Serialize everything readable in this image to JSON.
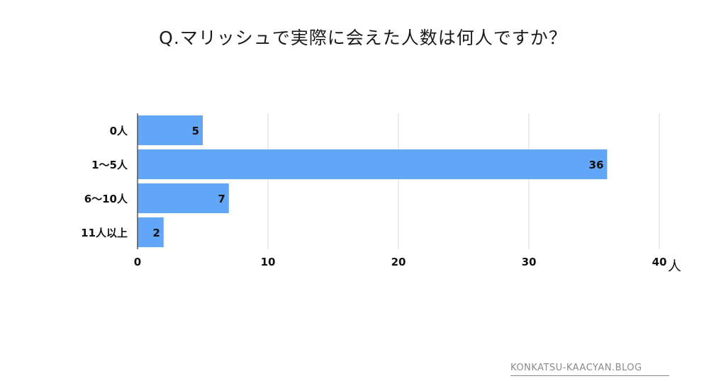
{
  "chart_data": {
    "type": "bar",
    "orientation": "horizontal",
    "title": "Q.マリッシュで実際に会えた人数は何人ですか？",
    "categories": [
      "0人",
      "1～5人",
      "6～10人",
      "11人以上"
    ],
    "values": [
      5,
      36,
      7,
      2
    ],
    "xlim": [
      0,
      40
    ],
    "xticks": [
      0,
      10,
      20,
      30,
      40
    ],
    "xunit": "人",
    "grid": true,
    "legend": "none",
    "bar_color": "#62a6f7",
    "grid_color": "#dddddd"
  },
  "watermark": "KONKATSU-KAACYAN.BLOG"
}
